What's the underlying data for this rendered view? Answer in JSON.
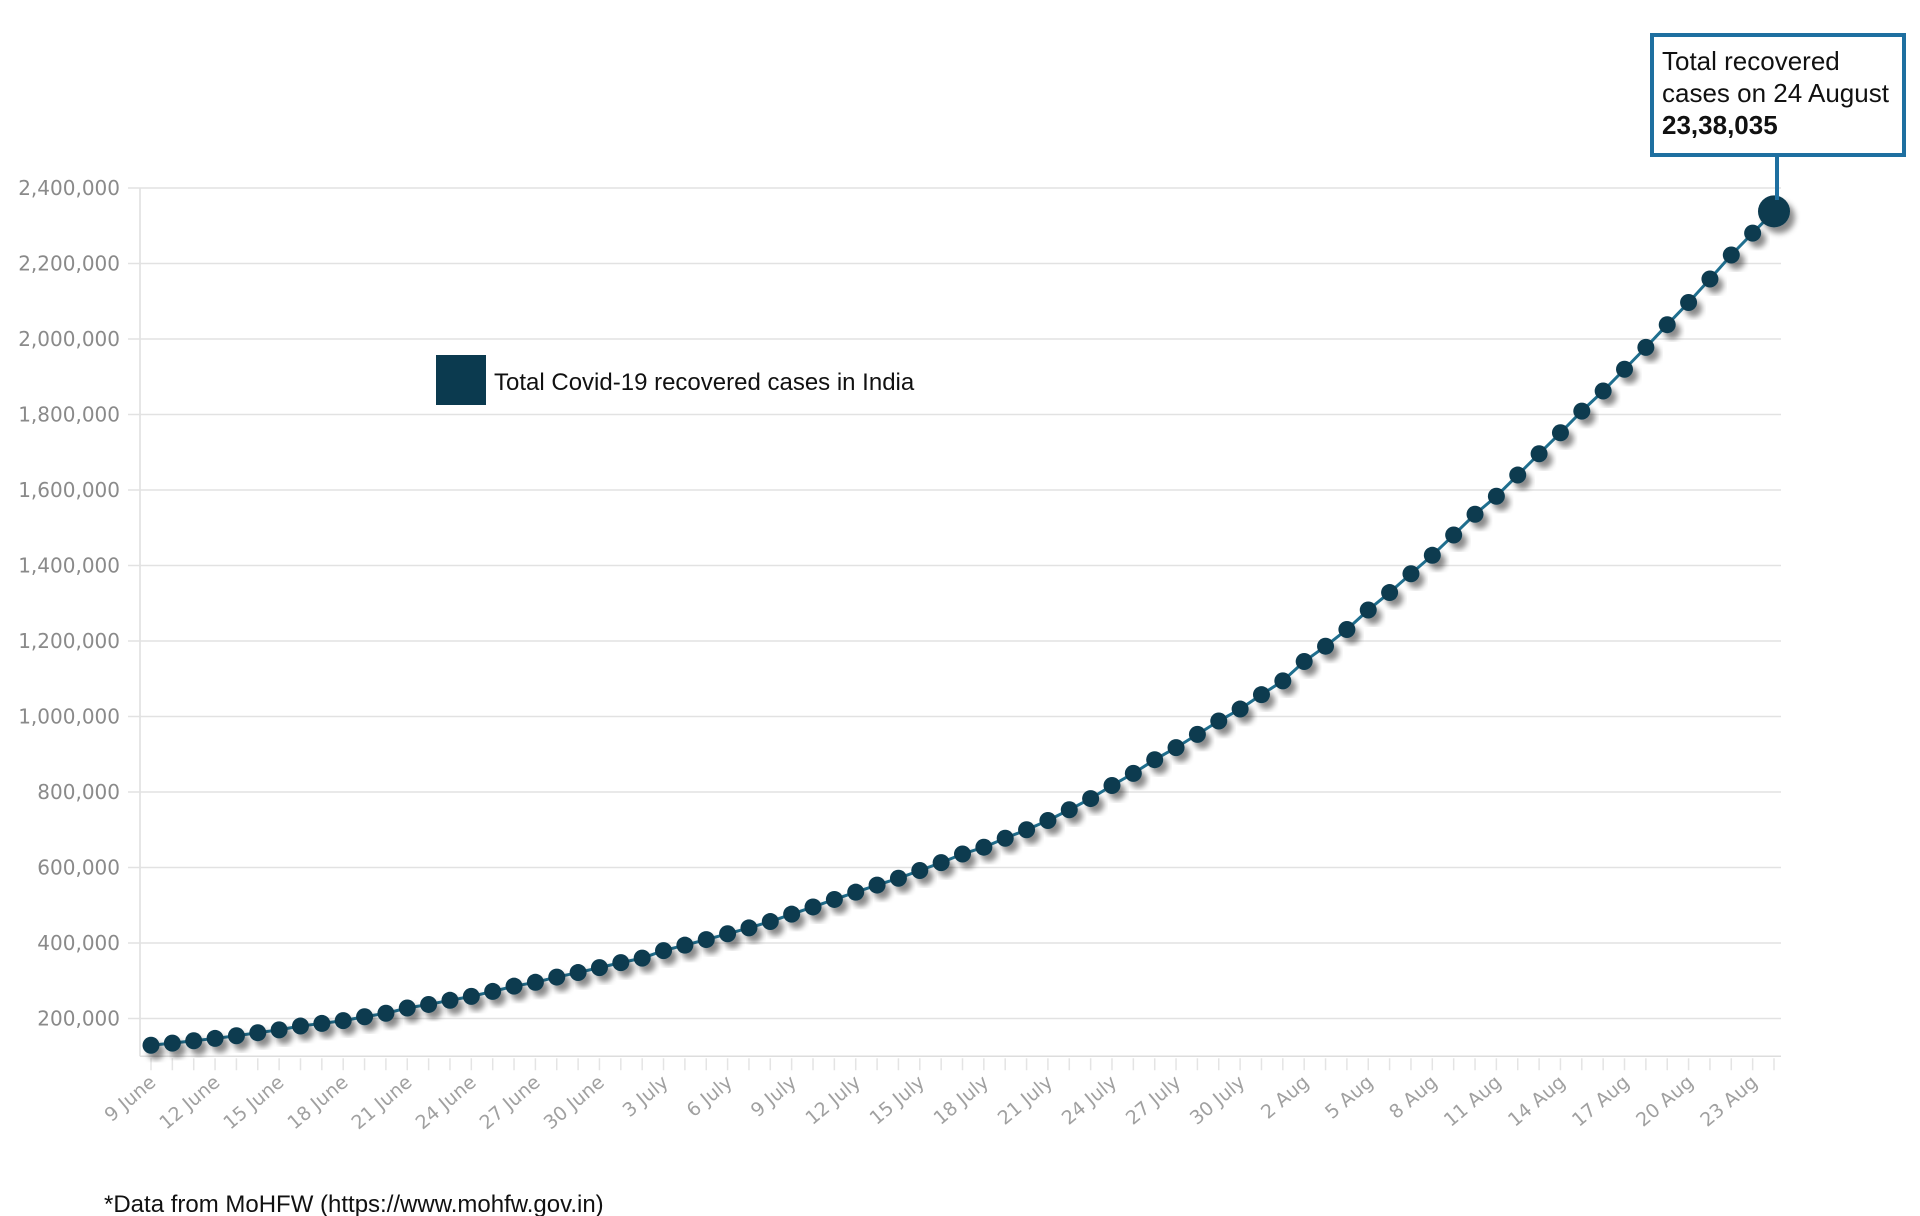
{
  "chart_data": {
    "type": "line",
    "title": "",
    "xlabel": "",
    "ylabel": "",
    "ylim": [
      100000,
      2400000
    ],
    "yticks": [
      200000,
      400000,
      600000,
      800000,
      1000000,
      1200000,
      1400000,
      1600000,
      1800000,
      2000000,
      2200000,
      2400000
    ],
    "ytick_labels": [
      "200,000",
      "400,000",
      "600,000",
      "800,000",
      "1,000,000",
      "1,200,000",
      "1,400,000",
      "1,600,000",
      "1,800,000",
      "2,000,000",
      "2,200,000",
      "2,400,000"
    ],
    "grid": true,
    "x": [
      "9 June",
      "10 June",
      "11 June",
      "12 June",
      "13 June",
      "14 June",
      "15 June",
      "16 June",
      "17 June",
      "18 June",
      "19 June",
      "20 June",
      "21 June",
      "22 June",
      "23 June",
      "24 June",
      "25 June",
      "26 June",
      "27 June",
      "28 June",
      "29 June",
      "30 June",
      "1 July",
      "2 July",
      "3 July",
      "4 July",
      "5 July",
      "6 July",
      "7 July",
      "8 July",
      "9 July",
      "10 July",
      "11 July",
      "12 July",
      "13 July",
      "14 July",
      "15 July",
      "16 July",
      "17 July",
      "18 July",
      "19 July",
      "20 July",
      "21 July",
      "22 July",
      "23 July",
      "24 July",
      "25 July",
      "26 July",
      "27 July",
      "28 July",
      "29 July",
      "30 July",
      "31 July",
      "1 Aug",
      "2 Aug",
      "3 Aug",
      "4 Aug",
      "5 Aug",
      "6 Aug",
      "7 Aug",
      "8 Aug",
      "9 Aug",
      "10 Aug",
      "11 Aug",
      "12 Aug",
      "13 Aug",
      "14 Aug",
      "15 Aug",
      "16 Aug",
      "17 Aug",
      "18 Aug",
      "19 Aug",
      "20 Aug",
      "21 Aug",
      "22 Aug",
      "23 Aug",
      "24 Aug"
    ],
    "xtick_labels": [
      "9 June",
      "12 June",
      "15 June",
      "18 June",
      "21 June",
      "24 June",
      "27 June",
      "30 June",
      "3 July",
      "6 July",
      "9 July",
      "12 July",
      "15 July",
      "18 July",
      "21 July",
      "24 July",
      "27 July",
      "30 July",
      "2 Aug",
      "5 Aug",
      "8 Aug",
      "11 Aug",
      "14 Aug",
      "17 Aug",
      "20 Aug",
      "23 Aug"
    ],
    "series": [
      {
        "name": "Total Covid-19 recovered cases in India",
        "color": "#0b3a4f",
        "line_color": "#1f6f8f",
        "values": [
          129215,
          134670,
          141029,
          147195,
          154330,
          162379,
          169798,
          180013,
          186935,
          194325,
          204711,
          213831,
          227756,
          237196,
          248190,
          258685,
          271697,
          285637,
          295881,
          309713,
          321723,
          334822,
          347979,
          359860,
          379892,
          394227,
          409083,
          424433,
          439948,
          456831,
          476378,
          495513,
          515386,
          534621,
          553471,
          571460,
          592032,
          612815,
          635757,
          653751,
          677423,
          700087,
          724578,
          753050,
          782607,
          817209,
          849432,
          885577,
          917568,
          952744,
          988030,
          1019735,
          1057806,
          1094374,
          1145630,
          1186203,
          1230509,
          1282215,
          1328336,
          1378105,
          1427005,
          1480884,
          1535743,
          1583489,
          1639599,
          1695982,
          1751555,
          1808936,
          1862258,
          1919842,
          1977779,
          2037870,
          2096664,
          2158946,
          2222577,
          2280566,
          2338035
        ]
      }
    ],
    "legend": {
      "label": "Total Covid-19 recovered cases in India",
      "placement": "top-left"
    },
    "annotation": {
      "line1": "Total recovered",
      "line2": "cases on 24 August",
      "value": "23,38,035",
      "border_color": "#1e6fa0"
    }
  },
  "footnote": "*Data from MoHFW (https://www.mohfw.gov.in)"
}
